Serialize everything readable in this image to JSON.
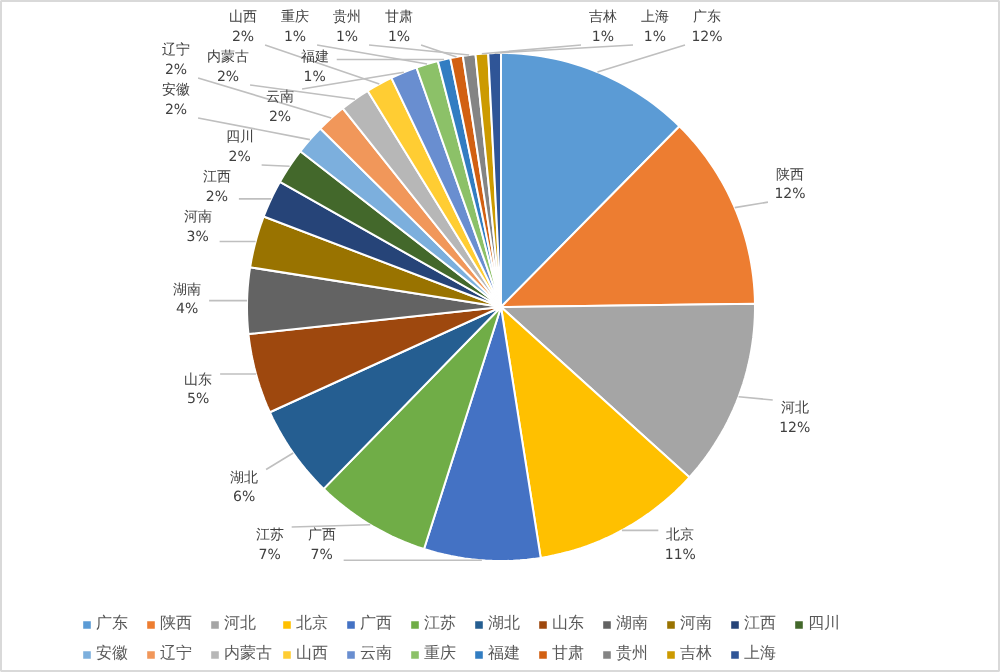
{
  "chart_data": {
    "type": "pie",
    "categories": [
      "广东",
      "陕西",
      "河北",
      "北京",
      "广西",
      "江苏",
      "湖北",
      "山东",
      "湖南",
      "河南",
      "江西",
      "四川",
      "安徽",
      "辽宁",
      "内蒙古",
      "山西",
      "云南",
      "重庆",
      "福建",
      "甘肃",
      "贵州",
      "吉林",
      "上海"
    ],
    "values": [
      12.4,
      12.4,
      11.9,
      10.8,
      7.4,
      7.4,
      5.9,
      5.1,
      4.2,
      3.3,
      2.4,
      2.3,
      1.9,
      1.9,
      1.9,
      1.7,
      1.7,
      1.4,
      0.8,
      0.8,
      0.8,
      0.8,
      0.8
    ],
    "value_labels": [
      "12%",
      "12%",
      "12%",
      "11%",
      "7%",
      "7%",
      "6%",
      "5%",
      "4%",
      "3%",
      "2%",
      "2%",
      "2%",
      "2%",
      "2%",
      "2%",
      "2%",
      "1%",
      "1%",
      "1%",
      "1%",
      "1%",
      "1%"
    ],
    "colors": [
      "#5b9bd5",
      "#ed7d31",
      "#a5a5a5",
      "#ffc000",
      "#4472c4",
      "#70ad47",
      "#255e91",
      "#9e480e",
      "#636363",
      "#997300",
      "#264478",
      "#43682b",
      "#7cafdd",
      "#f1975a",
      "#b7b7b7",
      "#ffcd33",
      "#698ed0",
      "#8cc168",
      "#327dc2",
      "#d26012",
      "#848484",
      "#cc9a00",
      "#2f5597"
    ],
    "legend": "bottom"
  }
}
